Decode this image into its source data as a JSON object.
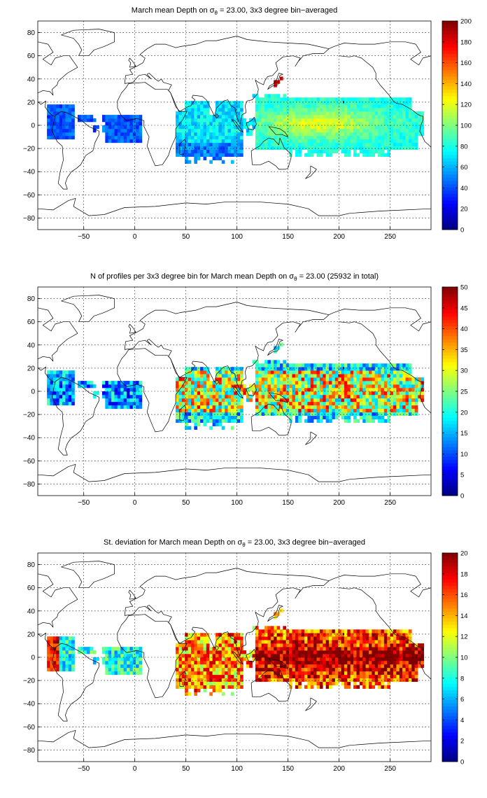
{
  "chart_data": [
    {
      "type": "heatmap",
      "title_prefix": "March mean Depth on ",
      "title_symbol": "σ",
      "title_sub": "θ",
      "title_suffix": " = 23.00, 3x3 degree bin−averaged",
      "x_ticks": [
        "−50",
        "0",
        "50",
        "100",
        "150",
        "200",
        "250"
      ],
      "y_ticks": [
        "80",
        "60",
        "40",
        "20",
        "0",
        "−20",
        "−40",
        "−60",
        "−80"
      ],
      "xlim": [
        -95,
        290
      ],
      "ylim": [
        -90,
        90
      ],
      "grid": true,
      "colorbar_range": [
        0,
        200
      ],
      "colorbar_ticks": [
        "200",
        "180",
        "160",
        "140",
        "120",
        "100",
        "80",
        "60",
        "40",
        "20",
        "0"
      ],
      "field": "depth"
    },
    {
      "type": "heatmap",
      "title_prefix": "N of profiles per 3x3 degree bin for March mean Depth on ",
      "title_symbol": "σ",
      "title_sub": "θ",
      "title_suffix": " = 23.00 (25932 in total)",
      "x_ticks": [
        "−50",
        "0",
        "50",
        "100",
        "150",
        "200",
        "250"
      ],
      "y_ticks": [
        "80",
        "60",
        "40",
        "20",
        "0",
        "−20",
        "−40",
        "−60",
        "−80"
      ],
      "xlim": [
        -95,
        290
      ],
      "ylim": [
        -90,
        90
      ],
      "grid": true,
      "colorbar_range": [
        0,
        50
      ],
      "colorbar_ticks": [
        "50",
        "45",
        "40",
        "35",
        "30",
        "25",
        "20",
        "15",
        "10",
        "5",
        "0"
      ],
      "field": "count"
    },
    {
      "type": "heatmap",
      "title_prefix": "St. deviation for March mean Depth on ",
      "title_symbol": "σ",
      "title_sub": "θ",
      "title_suffix": " = 23.00, 3x3 degree bin−averaged",
      "x_ticks": [
        "−50",
        "0",
        "50",
        "100",
        "150",
        "200",
        "250"
      ],
      "y_ticks": [
        "80",
        "60",
        "40",
        "20",
        "0",
        "−20",
        "−40",
        "−60",
        "−80"
      ],
      "xlim": [
        -95,
        290
      ],
      "ylim": [
        -90,
        90
      ],
      "grid": true,
      "colorbar_range": [
        0,
        20
      ],
      "colorbar_ticks": [
        "20",
        "18",
        "16",
        "14",
        "12",
        "10",
        "8",
        "6",
        "4",
        "2",
        "0"
      ],
      "field": "std"
    }
  ],
  "colormap": "jet"
}
